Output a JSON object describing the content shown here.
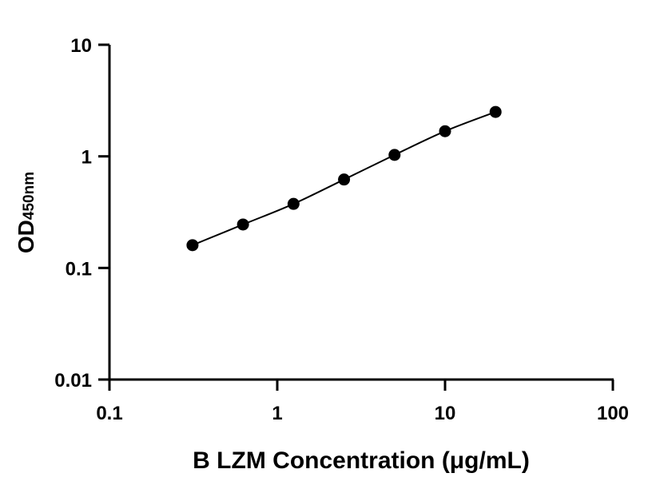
{
  "chart_data": {
    "type": "scatter",
    "title": "",
    "xlabel": "B LZM Concentration (μg/mL)",
    "ylabel": "OD",
    "ylabel_subscript": "450nm",
    "xscale": "log",
    "yscale": "log",
    "xlim": [
      0.1,
      100
    ],
    "ylim": [
      0.01,
      10
    ],
    "x_tick_labels": [
      "0.1",
      "1",
      "10",
      "100"
    ],
    "y_tick_labels": [
      "0.01",
      "0.1",
      "1",
      "10"
    ],
    "grid": false,
    "legend": "none",
    "fit_line": true,
    "series": [
      {
        "x": [
          0.3125,
          0.625,
          1.25,
          2.5,
          5,
          10,
          20
        ],
        "y": [
          0.16,
          0.245,
          0.375,
          0.62,
          1.03,
          1.68,
          2.5
        ]
      }
    ],
    "colors": {
      "marker": "#000000",
      "line": "#000000",
      "axis": "#000000"
    }
  }
}
